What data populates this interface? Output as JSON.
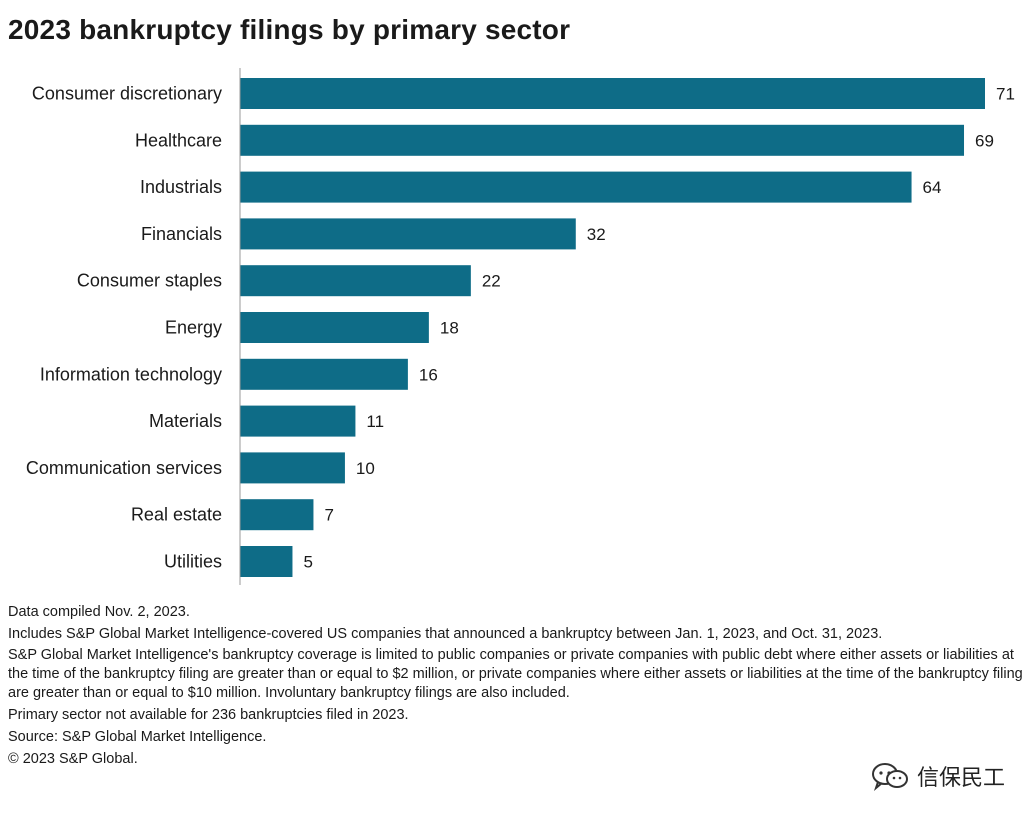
{
  "chart_data": {
    "type": "bar",
    "orientation": "horizontal",
    "title": "2023 bankruptcy filings by primary sector",
    "categories": [
      "Consumer discretionary",
      "Healthcare",
      "Industrials",
      "Financials",
      "Consumer staples",
      "Energy",
      "Information technology",
      "Materials",
      "Communication services",
      "Real estate",
      "Utilities"
    ],
    "values": [
      71,
      69,
      64,
      32,
      22,
      18,
      16,
      11,
      10,
      7,
      5
    ],
    "xlim": [
      0,
      71
    ],
    "grid": false,
    "legend": "none",
    "bar_color": "#0e6c87"
  },
  "notes": [
    "Data compiled Nov. 2, 2023.",
    "Includes S&P Global Market Intelligence-covered US companies that announced a bankruptcy between Jan. 1, 2023, and Oct. 31, 2023.",
    "S&P Global Market Intelligence's bankruptcy coverage is limited to public companies or private companies with public debt where either assets or liabilities at the time of the bankruptcy filing are greater than or equal to $2 million, or private companies where either assets or liabilities at the time of the bankruptcy filing are greater than or equal to $10 million. Involuntary bankruptcy filings are also included.",
    "Primary sector not available for 236 bankruptcies filed in 2023.",
    "Source: S&P Global Market Intelligence.",
    "© 2023 S&P Global."
  ],
  "watermark": {
    "text": "信保民工",
    "icon": "wechat-icon"
  }
}
